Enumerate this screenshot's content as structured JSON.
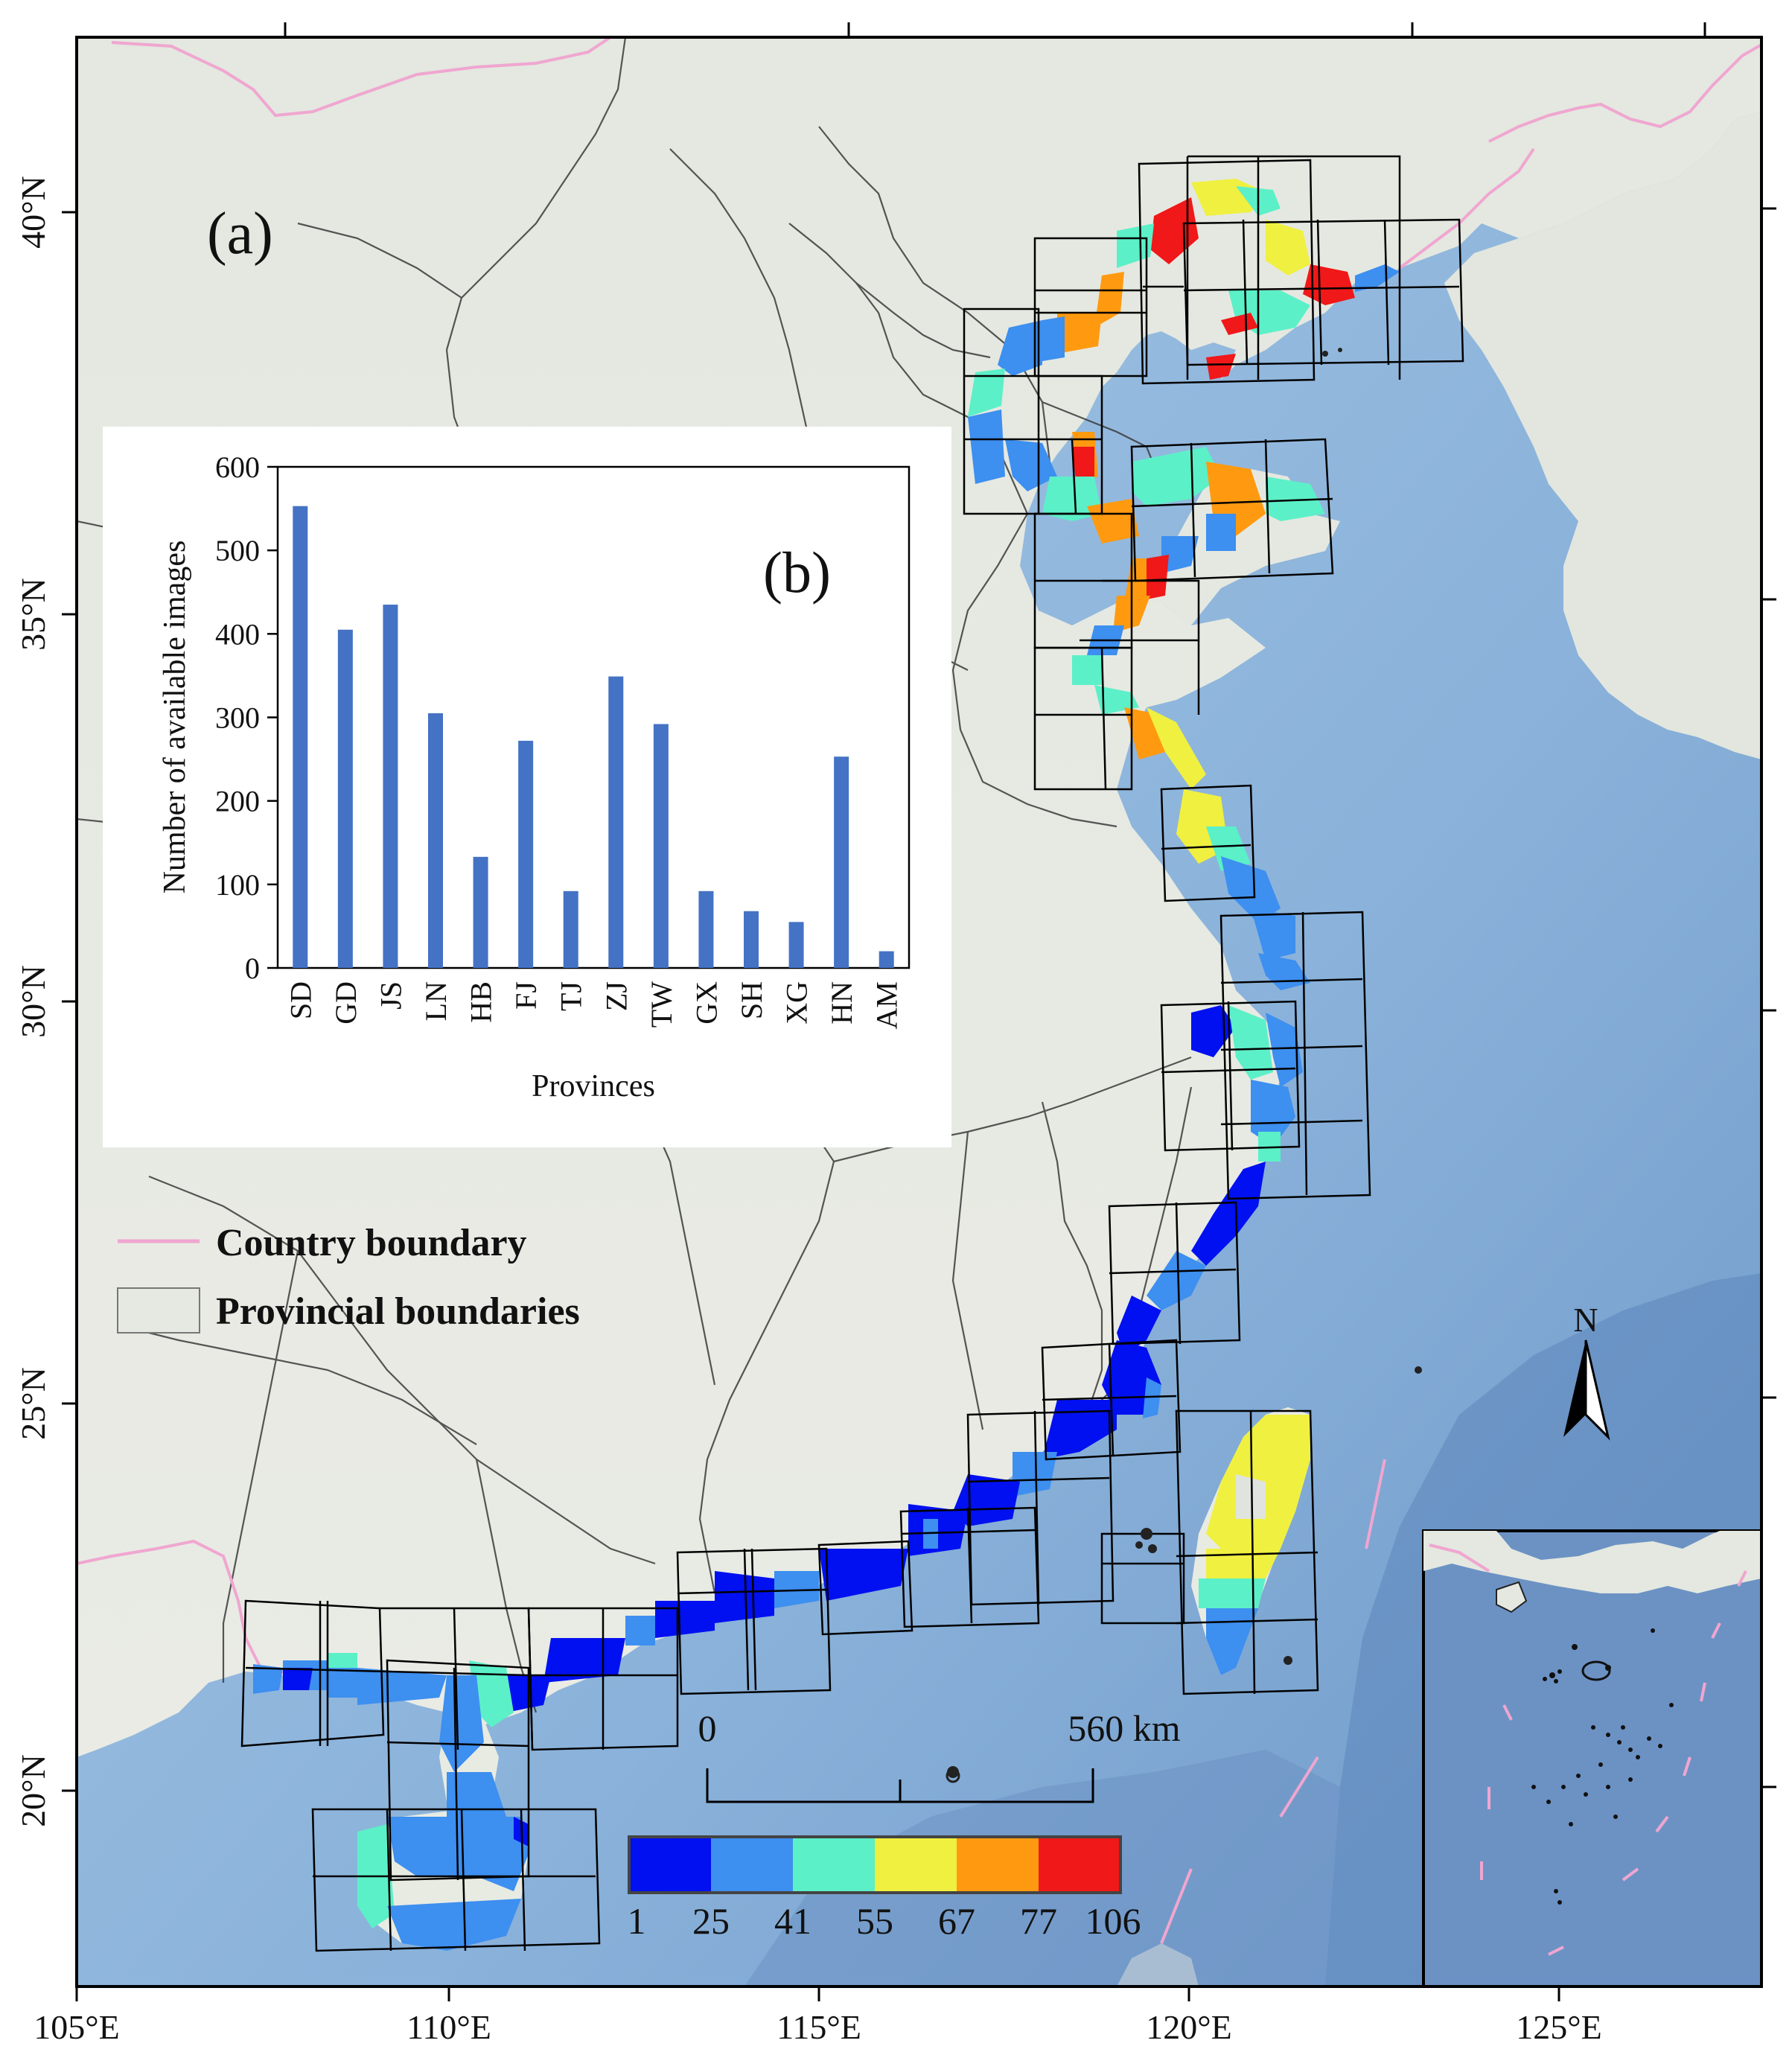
{
  "map": {
    "panel_label": "(a)",
    "lon_labels": [
      "105°E",
      "110°E",
      "115°E",
      "120°E",
      "125°E"
    ],
    "lat_labels": [
      "40°N",
      "35°N",
      "30°N",
      "25°N",
      "20°N"
    ],
    "legend": {
      "country": "Country boundary",
      "province": "Provincial boundaries"
    },
    "north_label": "N",
    "scale": {
      "start": "0",
      "end": "560 km"
    },
    "colorbar": {
      "ticks": [
        "1",
        "25",
        "41",
        "55",
        "67",
        "77",
        "106"
      ],
      "colors": [
        "#0010f0",
        "#3d8ff0",
        "#5cf0c8",
        "#f0f040",
        "#ff9a10",
        "#f01818"
      ]
    }
  },
  "chart_data": {
    "type": "bar",
    "panel_label": "(b)",
    "categories": [
      "SD",
      "GD",
      "JS",
      "LN",
      "HB",
      "FJ",
      "TJ",
      "ZJ",
      "TW",
      "GX",
      "SH",
      "XG",
      "HN",
      "AM"
    ],
    "values": [
      553,
      405,
      435,
      305,
      133,
      272,
      92,
      349,
      292,
      92,
      68,
      55,
      253,
      20
    ],
    "xlabel": "Provinces",
    "ylabel": "Number of available images",
    "ylim": [
      0,
      600
    ],
    "yticks": [
      "0",
      "100",
      "200",
      "300",
      "400",
      "500",
      "600"
    ],
    "bar_color": "#4472c4"
  }
}
